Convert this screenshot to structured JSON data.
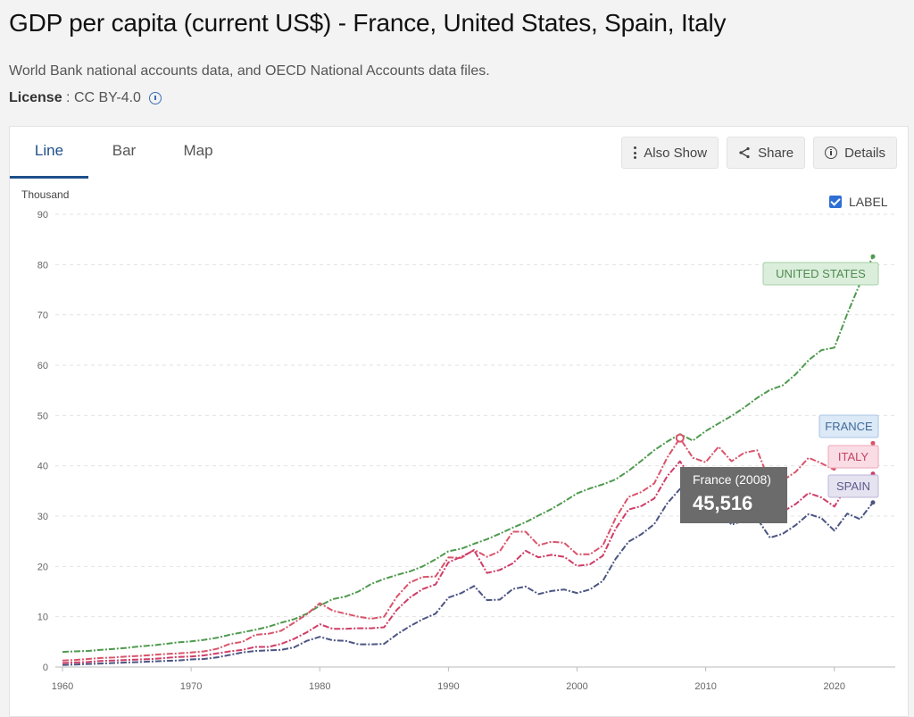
{
  "header": {
    "title": "GDP per capita (current US$) - France, United States, Spain, Italy",
    "subtitle": "World Bank national accounts data, and OECD National Accounts data files.",
    "license_key": "License",
    "license_sep": " : ",
    "license_value": "CC BY-4.0"
  },
  "tabs": {
    "line": "Line",
    "bar": "Bar",
    "map": "Map",
    "active": "line"
  },
  "toolbar": {
    "also_show": "Also Show",
    "share": "Share",
    "details": "Details"
  },
  "label_toggle": {
    "text": "LABEL",
    "checked": true
  },
  "tooltip": {
    "label": "France (2008)",
    "value": "45,516"
  },
  "colors": {
    "united_states": "#4f9a4f",
    "france": "#d9546b",
    "italy": "#cf3d68",
    "spain": "#4c5683"
  },
  "chart_data": {
    "type": "line",
    "ylabel": "Thousand",
    "ylim": [
      0,
      90
    ],
    "yticks": [
      0,
      10,
      20,
      30,
      40,
      50,
      60,
      70,
      80,
      90
    ],
    "xlim": [
      1960,
      2023
    ],
    "xticks": [
      1960,
      1970,
      1980,
      1990,
      2000,
      2010,
      2020
    ],
    "grid": true,
    "series": [
      {
        "name": "UNITED STATES",
        "key": "united_states",
        "label_box": {
          "fill": "#dbeedb",
          "stroke": "#a5cfa5",
          "text": "#4f8a4f"
        },
        "values": [
          3.0,
          3.1,
          3.2,
          3.4,
          3.6,
          3.8,
          4.1,
          4.3,
          4.6,
          4.9,
          5.1,
          5.4,
          5.8,
          6.4,
          6.9,
          7.4,
          8.0,
          8.8,
          9.5,
          10.6,
          12.2,
          13.5,
          14.0,
          15.0,
          16.5,
          17.5,
          18.3,
          19.0,
          20.0,
          21.4,
          23.0,
          23.5,
          24.5,
          25.4,
          26.5,
          27.7,
          28.8,
          30.1,
          31.4,
          32.9,
          34.5,
          35.5,
          36.3,
          37.3,
          39.0,
          41.0,
          43.1,
          44.8,
          46.3,
          45.0,
          46.9,
          48.4,
          49.9,
          51.6,
          53.5,
          55.1,
          56.0,
          58.2,
          61.0,
          63.0,
          63.5,
          70.2,
          76.3,
          81.6
        ]
      },
      {
        "name": "FRANCE",
        "key": "france",
        "label_box": {
          "fill": "#dce9f7",
          "stroke": "#a7c4e4",
          "text": "#3f6a98"
        },
        "values": [
          1.3,
          1.4,
          1.6,
          1.8,
          1.9,
          2.1,
          2.2,
          2.4,
          2.6,
          2.7,
          2.9,
          3.1,
          3.6,
          4.6,
          5.0,
          6.4,
          6.6,
          7.2,
          8.8,
          10.5,
          12.7,
          11.2,
          10.6,
          10.0,
          9.6,
          10.0,
          14.0,
          16.8,
          17.9,
          18.0,
          21.8,
          21.7,
          23.3,
          21.9,
          23.0,
          26.9,
          26.9,
          24.2,
          24.9,
          24.7,
          22.4,
          22.4,
          24.1,
          29.6,
          33.8,
          34.8,
          36.5,
          41.6,
          45.5,
          41.6,
          40.7,
          43.8,
          40.9,
          42.6,
          43.1,
          36.6,
          37.1,
          38.8,
          41.6,
          40.5,
          39.2,
          43.7,
          40.9,
          44.5
        ]
      },
      {
        "name": "ITALY",
        "key": "italy",
        "label_box": {
          "fill": "#fadde4",
          "stroke": "#eda6b7",
          "text": "#c24466"
        },
        "values": [
          0.8,
          0.9,
          1.0,
          1.2,
          1.3,
          1.4,
          1.5,
          1.6,
          1.8,
          2.0,
          2.1,
          2.3,
          2.7,
          3.1,
          3.4,
          4.0,
          4.0,
          4.6,
          5.6,
          6.9,
          8.5,
          7.6,
          7.6,
          7.7,
          7.7,
          7.9,
          11.4,
          13.8,
          15.5,
          16.4,
          20.8,
          21.9,
          23.2,
          18.7,
          19.3,
          20.6,
          23.1,
          21.8,
          22.3,
          21.9,
          20.1,
          20.4,
          22.1,
          27.5,
          31.3,
          32.0,
          33.5,
          37.9,
          40.9,
          37.1,
          36.0,
          38.6,
          35.1,
          35.6,
          35.6,
          30.2,
          30.9,
          32.4,
          34.6,
          33.7,
          31.9,
          36.0,
          34.8,
          38.4
        ]
      },
      {
        "name": "SPAIN",
        "key": "spain",
        "label_box": {
          "fill": "#e6e3f1",
          "stroke": "#bcb6d8",
          "text": "#5a5a8a"
        },
        "values": [
          0.4,
          0.5,
          0.6,
          0.7,
          0.8,
          0.9,
          1.0,
          1.1,
          1.2,
          1.3,
          1.5,
          1.6,
          1.9,
          2.4,
          2.9,
          3.2,
          3.3,
          3.4,
          3.9,
          5.2,
          6.0,
          5.3,
          5.2,
          4.5,
          4.5,
          4.6,
          6.5,
          8.1,
          9.5,
          10.6,
          13.8,
          14.7,
          16.1,
          13.3,
          13.4,
          15.5,
          16.0,
          14.5,
          15.1,
          15.4,
          14.7,
          15.4,
          17.1,
          21.5,
          24.9,
          26.4,
          28.4,
          32.5,
          35.4,
          32.1,
          30.5,
          31.6,
          28.3,
          29.1,
          29.5,
          25.7,
          26.5,
          28.2,
          30.4,
          29.6,
          27.1,
          30.5,
          29.4,
          32.7
        ]
      }
    ]
  }
}
